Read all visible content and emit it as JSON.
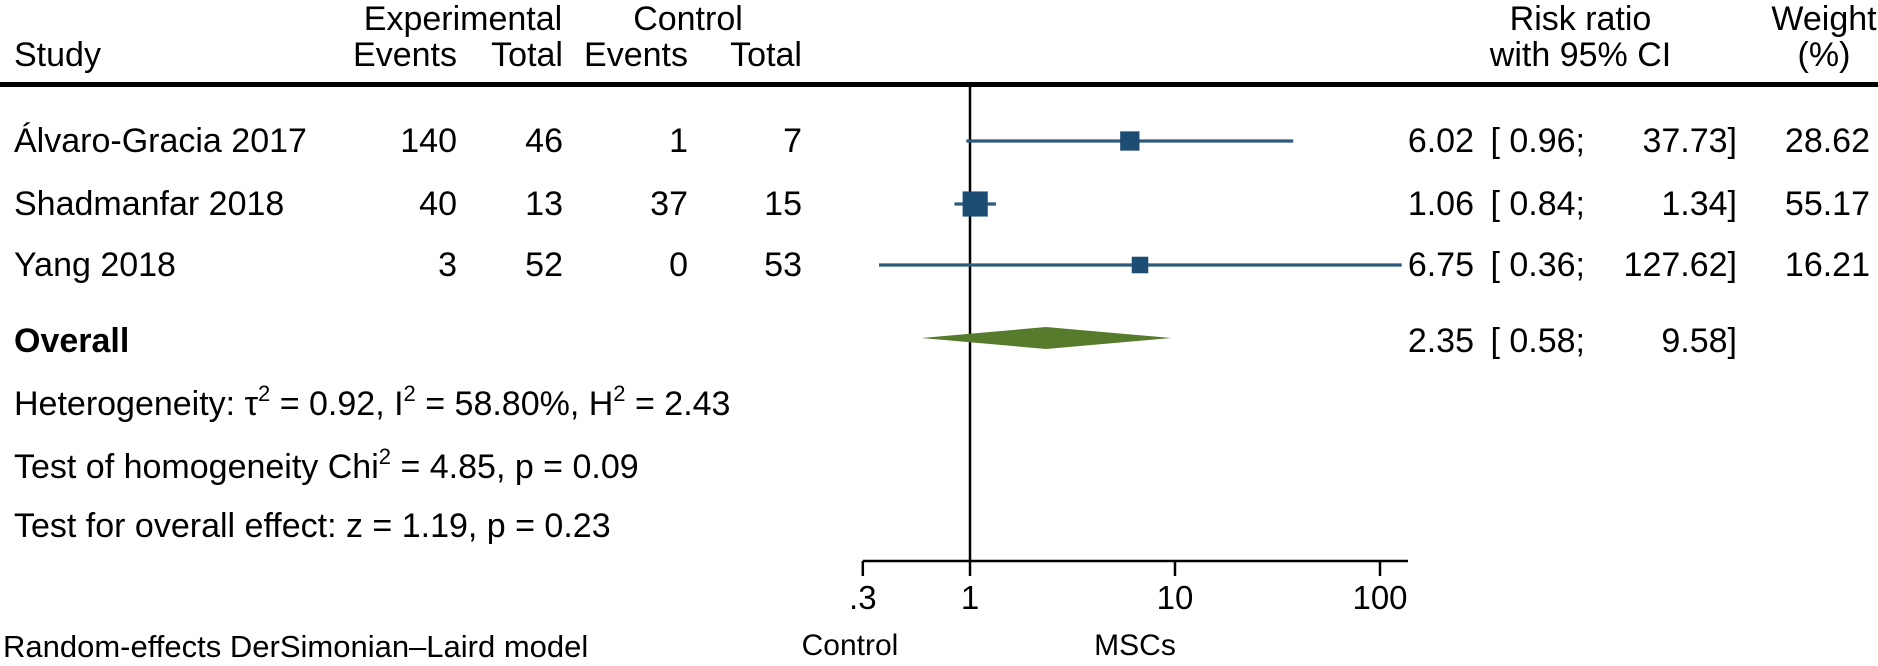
{
  "header": {
    "group_experimental": "Experimental",
    "group_control": "Control",
    "col_study": "Study",
    "col_events": "Events",
    "col_total": "Total",
    "col_rr_line1": "Risk ratio",
    "col_rr_line2": "with 95% CI",
    "col_weight_line1": "Weight",
    "col_weight_line2": "(%)"
  },
  "overall_label": "Overall",
  "stats": {
    "heterogeneity": [
      {
        "t": "Heterogeneity: τ"
      },
      {
        "t": "2",
        "sup": true
      },
      {
        "t": " = 0.92, I"
      },
      {
        "t": "2",
        "sup": true
      },
      {
        "t": " = 58.80%, H"
      },
      {
        "t": "2",
        "sup": true
      },
      {
        "t": " = 2.43"
      }
    ],
    "homogeneity_test": [
      {
        "t": "Test of homogeneity Chi"
      },
      {
        "t": "2",
        "sup": true
      },
      {
        "t": " = 4.85, p = 0.09"
      }
    ],
    "overall_effect_test": [
      {
        "t": "Test for overall effect: z = 1.19, p = 0.23"
      }
    ]
  },
  "footer": {
    "model_note": "Random-effects DerSimonian–Laird model"
  },
  "axis": {
    "left_favor_label": "Control",
    "right_favor_label": "MSCs"
  },
  "colors": {
    "ci_line": "#2e5a7c",
    "effect_square": "#1e4d74",
    "diamond": "#567b2c",
    "axis": "#000000"
  },
  "chart_data": {
    "type": "forest",
    "effect_measure": "Risk ratio",
    "x_scale": "log10",
    "x_ticks": [
      0.3,
      1,
      10,
      100
    ],
    "x_tick_labels": [
      ".3",
      "1",
      "10",
      "100"
    ],
    "reference_line_x": 1,
    "studies": [
      {
        "study": "Álvaro-Gracia 2017",
        "exp_events": 140,
        "exp_total": 46,
        "ctrl_events": 1,
        "ctrl_total": 7,
        "rr": 6.02,
        "ci_lower": 0.96,
        "ci_upper": 37.73,
        "weight_pct": 28.62
      },
      {
        "study": "Shadmanfar 2018",
        "exp_events": 40,
        "exp_total": 13,
        "ctrl_events": 37,
        "ctrl_total": 15,
        "rr": 1.06,
        "ci_lower": 0.84,
        "ci_upper": 1.34,
        "weight_pct": 55.17
      },
      {
        "study": "Yang 2018",
        "exp_events": 3,
        "exp_total": 52,
        "ctrl_events": 0,
        "ctrl_total": 53,
        "rr": 6.75,
        "ci_lower": 0.36,
        "ci_upper": 127.62,
        "weight_pct": 16.21
      }
    ],
    "overall": {
      "rr": 2.35,
      "ci_lower": 0.58,
      "ci_upper": 9.58
    },
    "heterogeneity": {
      "tau2": 0.92,
      "I2_pct": 58.8,
      "H2": 2.43,
      "chi2": 4.85,
      "p_homogeneity": 0.09
    },
    "overall_test": {
      "z": 1.19,
      "p": 0.23
    }
  }
}
